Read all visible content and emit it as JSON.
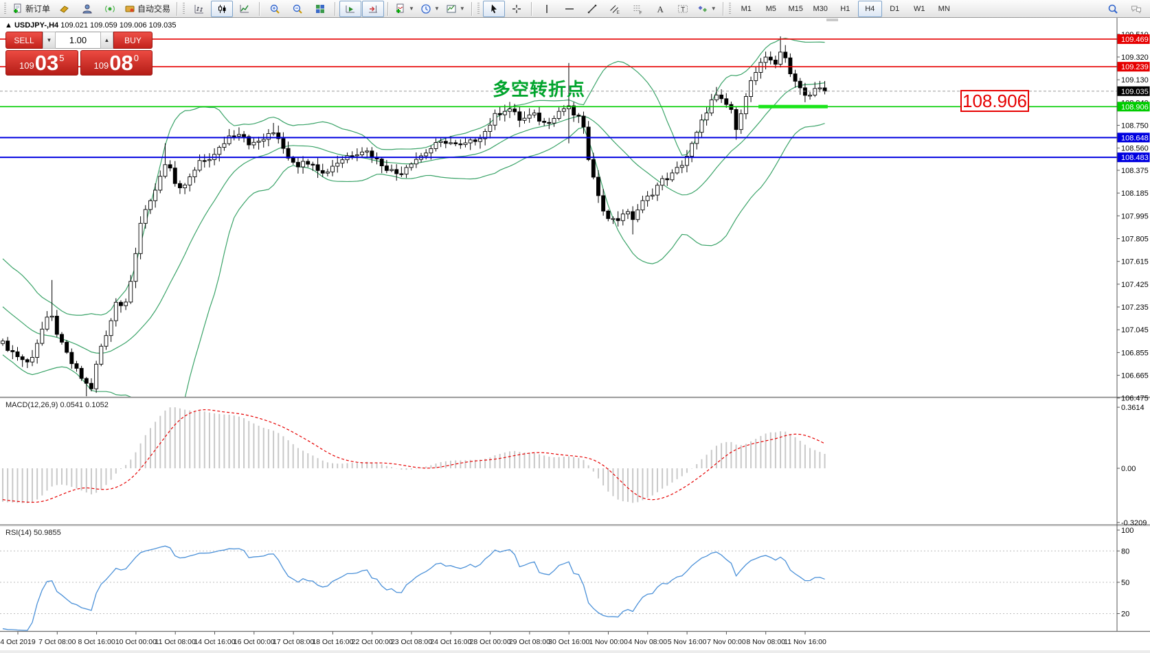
{
  "toolbar": {
    "groups": [
      {
        "grip": true,
        "items": [
          {
            "name": "new-order-button",
            "icon": "new-order-icon",
            "label": "新订单"
          },
          {
            "name": "toolbox-button",
            "icon": "toolbox-icon"
          },
          {
            "name": "profile-button",
            "icon": "profile-icon"
          },
          {
            "name": "signals-button",
            "icon": "signal-icon"
          },
          {
            "name": "auto-trading-button",
            "icon": "auto-trading-icon",
            "label": "自动交易"
          }
        ]
      },
      {
        "sep": true,
        "grip": true,
        "items": [
          {
            "name": "bar-chart-button",
            "icon": "bar-chart-icon"
          },
          {
            "name": "candlestick-chart-button",
            "icon": "candlestick-icon",
            "active": true
          },
          {
            "name": "line-chart-button",
            "icon": "line-chart-icon"
          }
        ]
      },
      {
        "sep": true,
        "items": [
          {
            "name": "zoom-in-button",
            "icon": "zoom-in-icon"
          },
          {
            "name": "zoom-out-button",
            "icon": "zoom-out-icon"
          },
          {
            "name": "tile-windows-button",
            "icon": "tile-windows-icon"
          }
        ]
      },
      {
        "sep": true,
        "items": [
          {
            "name": "auto-scroll-button",
            "icon": "auto-scroll-icon",
            "active": true
          },
          {
            "name": "chart-shift-button",
            "icon": "chart-shift-icon",
            "active": true
          }
        ]
      },
      {
        "sep": true,
        "items": [
          {
            "name": "indicators-button",
            "icon": "indicators-icon",
            "dropdown": true
          },
          {
            "name": "periods-button",
            "icon": "clock-icon",
            "dropdown": true
          },
          {
            "name": "templates-button",
            "icon": "template-icon",
            "dropdown": true
          }
        ]
      },
      {
        "sep": true,
        "grip": true,
        "items": [
          {
            "name": "cursor-button",
            "icon": "cursor-icon",
            "active": true
          },
          {
            "name": "crosshair-button",
            "icon": "crosshair-icon"
          }
        ]
      },
      {
        "sep": true,
        "items": [
          {
            "name": "vertical-line-button",
            "icon": "vertical-line-icon"
          },
          {
            "name": "horizontal-line-button",
            "icon": "horizontal-line-icon"
          },
          {
            "name": "trendline-button",
            "icon": "trendline-icon"
          },
          {
            "name": "equidistant-channel-button",
            "icon": "channel-icon"
          },
          {
            "name": "fibonacci-button",
            "icon": "fibonacci-icon"
          },
          {
            "name": "text-button",
            "icon": "text-icon"
          },
          {
            "name": "text-label-button",
            "icon": "text-label-icon"
          },
          {
            "name": "shapes-button",
            "icon": "shapes-icon",
            "dropdown": true
          }
        ]
      },
      {
        "sep": true,
        "grip": true,
        "items": [
          {
            "name": "timeframe-m1",
            "label": "M1",
            "tf": true
          },
          {
            "name": "timeframe-m5",
            "label": "M5",
            "tf": true
          },
          {
            "name": "timeframe-m15",
            "label": "M15",
            "tf": true
          },
          {
            "name": "timeframe-m30",
            "label": "M30",
            "tf": true
          },
          {
            "name": "timeframe-h1",
            "label": "H1",
            "tf": true
          },
          {
            "name": "timeframe-h4",
            "label": "H4",
            "tf": true,
            "active": true
          },
          {
            "name": "timeframe-d1",
            "label": "D1",
            "tf": true
          },
          {
            "name": "timeframe-w1",
            "label": "W1",
            "tf": true
          },
          {
            "name": "timeframe-mn",
            "label": "MN",
            "tf": true
          }
        ]
      }
    ],
    "right_items": [
      {
        "name": "search-button",
        "icon": "search-icon"
      },
      {
        "name": "chat-button",
        "icon": "chat-icon"
      }
    ]
  },
  "chart": {
    "title_symbol": "USDJPY-,H4",
    "title_ohlc": "109.021 109.059 109.006 109.035",
    "annotation": {
      "text": "多空转折点",
      "color": "#00a42c"
    },
    "callout": {
      "text": "108.906",
      "color": "#e60000"
    }
  },
  "trade_panel": {
    "sell_label": "SELL",
    "buy_label": "BUY",
    "volume": "1.00",
    "sell_hundreds": "109",
    "sell_big": "03",
    "sell_sup": "5",
    "buy_hundreds": "109",
    "buy_big": "08",
    "buy_sup": "0"
  },
  "chart_data": {
    "type": "candlestick",
    "symbol": "USDJPY-",
    "timeframe": "H4",
    "current_ohlc": {
      "open": 109.021,
      "high": 109.059,
      "low": 109.006,
      "close": 109.035
    },
    "y_ticks": [
      "109.510",
      "109.320",
      "109.130",
      "108.940",
      "108.750",
      "108.560",
      "108.375",
      "108.185",
      "107.995",
      "107.805",
      "107.615",
      "107.425",
      "107.235",
      "107.045",
      "106.855",
      "106.665",
      "106.475"
    ],
    "x_labels": [
      "4 Oct 2019",
      "7 Oct 08:00",
      "8 Oct 16:00",
      "10 Oct 00:00",
      "11 Oct 08:00",
      "14 Oct 16:00",
      "16 Oct 00:00",
      "17 Oct 08:00",
      "18 Oct 16:00",
      "22 Oct 00:00",
      "23 Oct 08:00",
      "24 Oct 16:00",
      "28 Oct 00:00",
      "29 Oct 08:00",
      "30 Oct 16:00",
      "1 Nov 00:00",
      "4 Nov 08:00",
      "5 Nov 16:00",
      "7 Nov 00:00",
      "8 Nov 08:00",
      "11 Nov 16:00"
    ],
    "num_bars": 168,
    "bars_per_label": 8,
    "close_path": [
      [
        0.0,
        106.93
      ],
      [
        0.015,
        106.84
      ],
      [
        0.032,
        106.76
      ],
      [
        0.048,
        107.05
      ],
      [
        0.058,
        107.18
      ],
      [
        0.07,
        106.94
      ],
      [
        0.085,
        106.75
      ],
      [
        0.1,
        106.6
      ],
      [
        0.108,
        106.56
      ],
      [
        0.118,
        106.88
      ],
      [
        0.128,
        107.02
      ],
      [
        0.138,
        107.3
      ],
      [
        0.148,
        107.22
      ],
      [
        0.158,
        107.55
      ],
      [
        0.168,
        107.95
      ],
      [
        0.178,
        108.08
      ],
      [
        0.19,
        108.3
      ],
      [
        0.2,
        108.48
      ],
      [
        0.212,
        108.18
      ],
      [
        0.225,
        108.28
      ],
      [
        0.24,
        108.44
      ],
      [
        0.258,
        108.5
      ],
      [
        0.275,
        108.66
      ],
      [
        0.29,
        108.7
      ],
      [
        0.302,
        108.58
      ],
      [
        0.318,
        108.64
      ],
      [
        0.332,
        108.7
      ],
      [
        0.346,
        108.5
      ],
      [
        0.36,
        108.42
      ],
      [
        0.375,
        108.46
      ],
      [
        0.39,
        108.34
      ],
      [
        0.402,
        108.42
      ],
      [
        0.42,
        108.5
      ],
      [
        0.44,
        108.55
      ],
      [
        0.455,
        108.46
      ],
      [
        0.47,
        108.38
      ],
      [
        0.482,
        108.34
      ],
      [
        0.495,
        108.44
      ],
      [
        0.51,
        108.5
      ],
      [
        0.525,
        108.58
      ],
      [
        0.54,
        108.62
      ],
      [
        0.555,
        108.57
      ],
      [
        0.57,
        108.61
      ],
      [
        0.585,
        108.68
      ],
      [
        0.6,
        108.84
      ],
      [
        0.615,
        108.9
      ],
      [
        0.63,
        108.79
      ],
      [
        0.645,
        108.84
      ],
      [
        0.66,
        108.76
      ],
      [
        0.675,
        108.86
      ],
      [
        0.69,
        108.92
      ],
      [
        0.697,
        108.76
      ],
      [
        0.703,
        108.88
      ],
      [
        0.71,
        108.55
      ],
      [
        0.718,
        108.32
      ],
      [
        0.726,
        108.1
      ],
      [
        0.736,
        108.0
      ],
      [
        0.746,
        107.94
      ],
      [
        0.756,
        108.04
      ],
      [
        0.766,
        107.97
      ],
      [
        0.776,
        108.09
      ],
      [
        0.788,
        108.17
      ],
      [
        0.8,
        108.28
      ],
      [
        0.815,
        108.34
      ],
      [
        0.83,
        108.46
      ],
      [
        0.842,
        108.64
      ],
      [
        0.856,
        108.87
      ],
      [
        0.866,
        109.0
      ],
      [
        0.876,
        108.94
      ],
      [
        0.886,
        108.89
      ],
      [
        0.893,
        108.67
      ],
      [
        0.9,
        108.94
      ],
      [
        0.91,
        109.11
      ],
      [
        0.92,
        109.24
      ],
      [
        0.93,
        109.31
      ],
      [
        0.94,
        109.27
      ],
      [
        0.948,
        109.4
      ],
      [
        0.956,
        109.19
      ],
      [
        0.964,
        109.14
      ],
      [
        0.971,
        109.05
      ],
      [
        0.98,
        108.99
      ],
      [
        0.99,
        109.06
      ],
      [
        1.0,
        109.035
      ]
    ],
    "spikes": [
      {
        "frac": 0.058,
        "high": 107.46
      },
      {
        "frac": 0.104,
        "low": 106.49
      },
      {
        "frac": 0.2,
        "high": 108.6
      },
      {
        "frac": 0.332,
        "high": 108.77
      },
      {
        "frac": 0.69,
        "high": 109.27,
        "low": 108.6
      },
      {
        "frac": 0.766,
        "low": 107.84
      },
      {
        "frac": 0.866,
        "high": 109.07
      },
      {
        "frac": 0.893,
        "low": 108.63
      },
      {
        "frac": 0.948,
        "high": 109.492
      }
    ],
    "hlines": [
      {
        "price": 109.469,
        "label": "109.469",
        "color": "#e60000",
        "width": 1.6
      },
      {
        "price": 109.239,
        "label": "109.239",
        "color": "#e60000",
        "width": 1.6
      },
      {
        "price": 108.906,
        "label": "108.906",
        "color": "#00cc00",
        "width": 1.6
      },
      {
        "price": 108.648,
        "label": "108.648",
        "color": "#0000e0",
        "width": 2
      },
      {
        "price": 108.483,
        "label": "108.483",
        "color": "#0000e0",
        "width": 2
      }
    ],
    "current_price": {
      "price": 109.035,
      "label": "109.035",
      "label_bg": "#000000"
    },
    "bold_segment": {
      "price": 108.906,
      "x1_frac": 0.679,
      "x2_frac": 0.741,
      "color": "#1ae51a",
      "width": 5
    },
    "indicators": {
      "bollinger": {
        "period": 20,
        "deviation": 2,
        "color": "#3aa368"
      },
      "macd": {
        "display": "MACD(12,26,9) 0.0541 0.1052",
        "fast": 12,
        "slow": 26,
        "signal": 9,
        "value_main": 0.0541,
        "value_signal": 0.1052,
        "axis_ticks": [
          {
            "v": 0.3614,
            "label": "0.3614"
          },
          {
            "v": 0.0,
            "label": "0.00"
          },
          {
            "v": -0.3209,
            "label": "-0.3209"
          }
        ],
        "hist_color": "#c8c8c8",
        "signal_color": "#e60000"
      },
      "rsi": {
        "display": "RSI(14) 50.9855",
        "period": 14,
        "value": 50.9855,
        "axis_ticks": [
          {
            "v": 100,
            "label": "100"
          },
          {
            "v": 80,
            "label": "80"
          },
          {
            "v": 50,
            "label": "50"
          },
          {
            "v": 20,
            "label": "20"
          }
        ],
        "levels": [
          80,
          50,
          20
        ],
        "color": "#4a90d8"
      }
    },
    "colors": {
      "up_fill": "#ffffff",
      "down_fill": "#000000",
      "outline": "#000000",
      "axis_text": "#000000"
    }
  }
}
